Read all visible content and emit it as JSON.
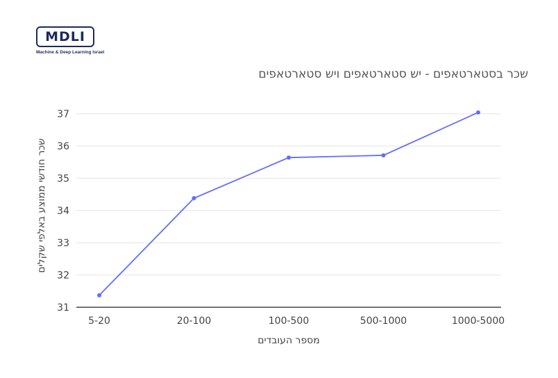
{
  "logo": {
    "text": "MDLI",
    "subtitle": "Machine & Deep Learning Israel"
  },
  "chart_data": {
    "type": "line",
    "title": "שכר בסטארטאפים - יש סטארטאפים ויש סטארטאפים",
    "xlabel": "מספר העובדים",
    "ylabel": "שכר חודשי ממוצע באלפי שקלים",
    "categories": [
      "5-20",
      "20-100",
      "100-500",
      "500-1000",
      "1000-5000"
    ],
    "values": [
      31.37,
      34.38,
      35.64,
      35.71,
      37.04
    ],
    "ylim": [
      31,
      37.3
    ],
    "yticks": [
      "31",
      "32",
      "33",
      "34",
      "35",
      "36",
      "37"
    ],
    "grid": "horizontal",
    "line_color": "#636efa"
  }
}
